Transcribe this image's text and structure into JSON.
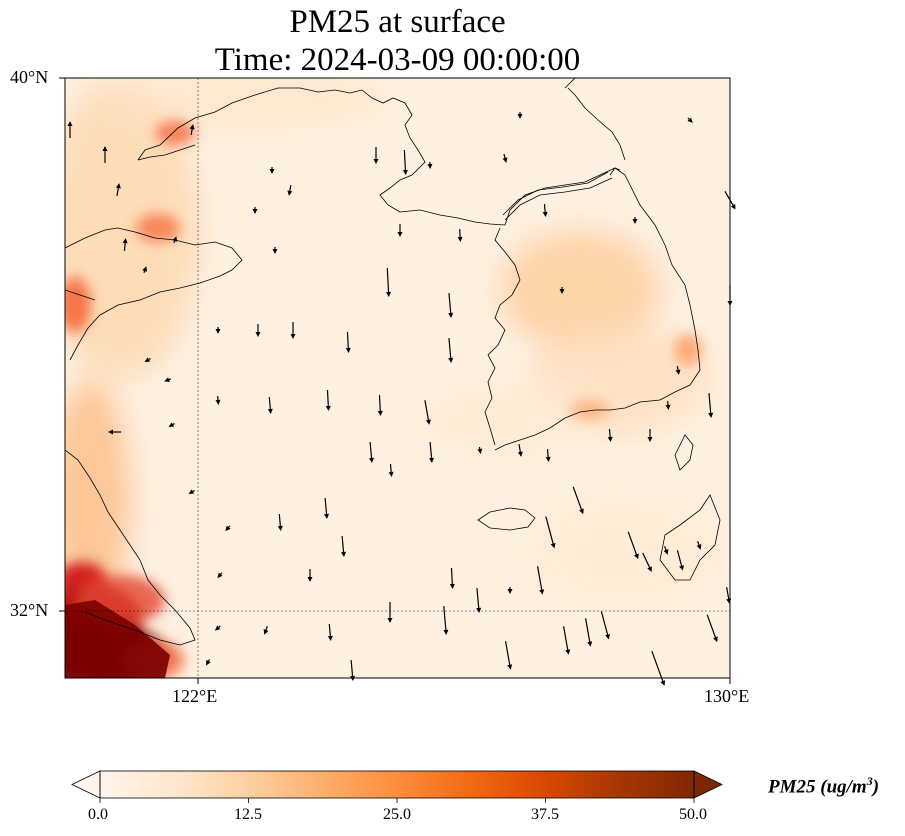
{
  "title": {
    "line1": "PM25 at surface",
    "line2": "Time: 2024-03-09 00:00:00"
  },
  "axes": {
    "lat_top": "40°N",
    "lat_bottom": "32°N",
    "lon_left": "122°E",
    "lon_right": "130°E"
  },
  "colorbar": {
    "label": "PM25 (ug/m",
    "label_sup": "3",
    "label_end": ")",
    "ticks": [
      "0.0",
      "12.5",
      "25.0",
      "37.5",
      "50.0"
    ],
    "min": 0,
    "max": 50,
    "colormap": [
      "#fff5eb",
      "#fee6ce",
      "#fdd0a2",
      "#fdae6b",
      "#fd8d3c",
      "#f16913",
      "#d94801",
      "#a63603",
      "#7f2704"
    ]
  },
  "map": {
    "extent_lon": [
      120,
      130
    ],
    "extent_lat": [
      31,
      40
    ],
    "gridlines": {
      "lon": 122,
      "lat": 32
    }
  }
}
